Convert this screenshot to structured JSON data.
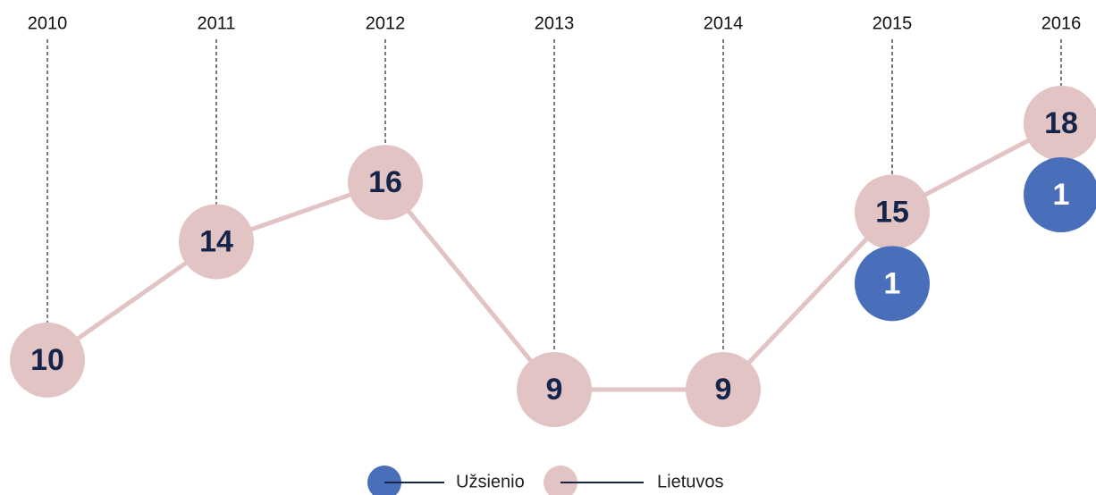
{
  "chart_data": {
    "type": "bubble-line",
    "categories": [
      "2010",
      "2011",
      "2012",
      "2013",
      "2014",
      "2015",
      "2016"
    ],
    "series": [
      {
        "name": "Lietuvos",
        "color": "#e2c4c5",
        "values": [
          10,
          14,
          16,
          9,
          9,
          15,
          18
        ]
      },
      {
        "name": "Užsienio",
        "color": "#4a6fba",
        "values": [
          null,
          null,
          null,
          null,
          null,
          1,
          1
        ]
      }
    ]
  }
}
